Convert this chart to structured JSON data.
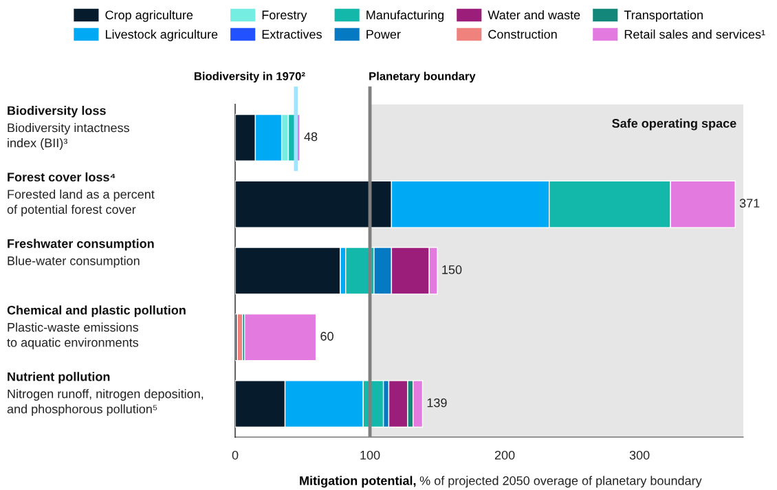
{
  "chart_data": {
    "type": "bar",
    "orientation": "horizontal",
    "stacked": true,
    "categories": [
      "Biodiversity loss\nBiodiversity intactness\nindex (BII)³",
      "Forest cover loss⁴\nForested land as a percent\nof potential forest cover",
      "Freshwater consumption\nBlue-water consumption",
      "Chemical and plastic pollution\nPlastic-waste emissions\nto aquatic environments",
      "Nutrient pollution\nNitrogen runoff, nitrogen deposition,\nand phosphorous pollution⁵"
    ],
    "series": [
      {
        "name": "Crop agriculture",
        "color": "#061c2c",
        "values": [
          15,
          116,
          78,
          1.5,
          37
        ]
      },
      {
        "name": "Livestock agriculture",
        "color": "#00a9f4",
        "values": [
          19.5,
          117,
          4,
          null,
          58
        ]
      },
      {
        "name": "Forestry",
        "color": "#75ede0",
        "values": [
          5,
          null,
          null,
          null,
          null
        ]
      },
      {
        "name": "Extractives",
        "color": "#2251ff",
        "values": [
          null,
          null,
          null,
          null,
          null
        ]
      },
      {
        "name": "Manufacturing",
        "color": "#14b8ab",
        "values": [
          6,
          90,
          21,
          null,
          15
        ]
      },
      {
        "name": "Power",
        "color": "#0679c3",
        "values": [
          null,
          null,
          13,
          null,
          4
        ]
      },
      {
        "name": "Water and waste",
        "color": "#9b1f7a",
        "values": [
          null,
          null,
          28,
          null,
          14
        ]
      },
      {
        "name": "Construction",
        "color": "#f0827d",
        "values": [
          null,
          null,
          null,
          4,
          null
        ]
      },
      {
        "name": "Transportation",
        "color": "#12877a",
        "values": [
          null,
          null,
          null,
          1.5,
          4
        ]
      },
      {
        "name": "Retail sales and services¹",
        "color": "#e27ae0",
        "values": [
          2.5,
          48,
          6,
          53,
          7
        ]
      }
    ],
    "totals": [
      "48",
      "371",
      "150",
      "60",
      "139"
    ],
    "xlim": [
      0,
      377
    ],
    "xticks": [
      0,
      100,
      200,
      300
    ],
    "xlabel": "Mitigation potential, % of projected 2050 overage of planetary boundary",
    "ref_lines": [
      {
        "axis": "x",
        "value": 45,
        "label": "Biodiversity in 1970²",
        "color": "#a0e4ff"
      },
      {
        "axis": "x",
        "value": 100,
        "label": "Planetary boundary",
        "color": "#808080"
      }
    ],
    "bands": [
      {
        "axis": "x",
        "from": 100,
        "to": 377,
        "label": "Safe operating space",
        "color": "#e6e6e6"
      }
    ],
    "legend": "top",
    "grid": false
  }
}
